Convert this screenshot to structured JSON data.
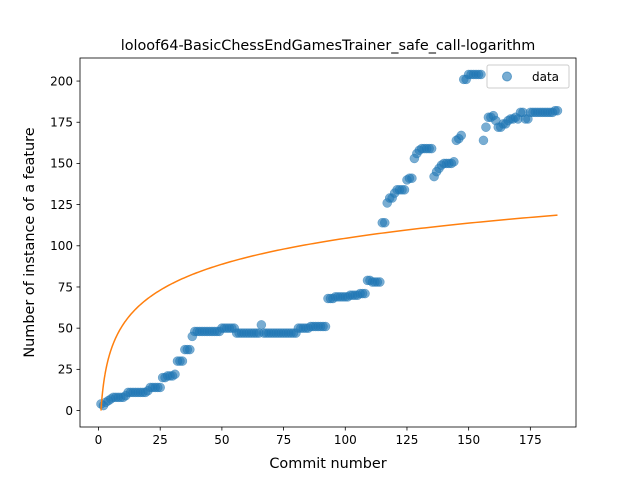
{
  "chart_data": {
    "type": "scatter",
    "title": "loloof64-BasicChessEndGamesTrainer_safe_call-logarithm",
    "xlabel": "Commit number",
    "ylabel": "Number of instance of a feature",
    "xlim": [
      -7.5,
      193.5
    ],
    "ylim": [
      -10,
      214
    ],
    "xticks": [
      0,
      25,
      50,
      75,
      100,
      125,
      150,
      175
    ],
    "yticks": [
      0,
      25,
      50,
      75,
      100,
      125,
      150,
      175,
      200
    ],
    "grid": false,
    "legend": {
      "placement": "top-right",
      "entries": [
        "data"
      ]
    },
    "colors": {
      "data": "#1f77b4",
      "fit": "#ff7f0e"
    },
    "series": [
      {
        "name": "data",
        "kind": "scatter",
        "x": [
          1,
          2,
          3,
          4,
          5,
          6,
          7,
          8,
          9,
          10,
          11,
          12,
          13,
          14,
          15,
          16,
          17,
          18,
          19,
          20,
          21,
          22,
          23,
          24,
          25,
          26,
          27,
          28,
          29,
          30,
          31,
          32,
          33,
          34,
          35,
          36,
          37,
          38,
          39,
          40,
          41,
          42,
          43,
          44,
          45,
          46,
          47,
          48,
          49,
          50,
          51,
          52,
          53,
          54,
          55,
          56,
          57,
          58,
          59,
          60,
          61,
          62,
          63,
          64,
          65,
          66,
          67,
          68,
          69,
          70,
          71,
          72,
          73,
          74,
          75,
          76,
          77,
          78,
          79,
          80,
          81,
          82,
          83,
          84,
          85,
          86,
          87,
          88,
          89,
          90,
          91,
          92,
          93,
          94,
          95,
          96,
          97,
          98,
          99,
          100,
          101,
          102,
          103,
          104,
          105,
          106,
          107,
          108,
          109,
          110,
          111,
          112,
          113,
          114,
          115,
          116,
          117,
          118,
          119,
          120,
          121,
          122,
          123,
          124,
          125,
          126,
          127,
          128,
          129,
          130,
          131,
          132,
          133,
          134,
          135,
          136,
          137,
          138,
          139,
          140,
          141,
          142,
          143,
          144,
          145,
          146,
          147,
          148,
          149,
          150,
          151,
          152,
          153,
          154,
          155,
          156,
          157,
          158,
          159,
          160,
          161,
          162,
          163,
          164,
          165,
          166,
          167,
          168,
          169,
          170,
          171,
          172,
          173,
          174,
          175,
          176,
          177,
          178,
          179,
          180,
          181,
          182,
          183,
          184,
          185,
          186
        ],
        "y": [
          4,
          3,
          5,
          6,
          7,
          8,
          8,
          8,
          8,
          8,
          9,
          11,
          11,
          11,
          11,
          11,
          11,
          11,
          11,
          12,
          14,
          14,
          14,
          14,
          14,
          20,
          20,
          21,
          21,
          21,
          22,
          30,
          30,
          30,
          37,
          37,
          37,
          45,
          48,
          48,
          48,
          48,
          48,
          48,
          48,
          48,
          48,
          48,
          48,
          50,
          50,
          50,
          50,
          50,
          50,
          47,
          47,
          47,
          47,
          47,
          47,
          47,
          47,
          47,
          47,
          52,
          47,
          47,
          47,
          47,
          47,
          47,
          47,
          47,
          47,
          47,
          47,
          47,
          47,
          47,
          50,
          50,
          50,
          50,
          50,
          51,
          51,
          51,
          51,
          51,
          51,
          51,
          68,
          68,
          68,
          69,
          69,
          69,
          69,
          69,
          69,
          70,
          70,
          70,
          70,
          71,
          71,
          71,
          79,
          79,
          78,
          78,
          78,
          78,
          114,
          114,
          126,
          129,
          129,
          132,
          134,
          134,
          134,
          134,
          140,
          141,
          141,
          153,
          156,
          158,
          159,
          159,
          159,
          159,
          159,
          142,
          145,
          147,
          149,
          150,
          150,
          150,
          150,
          151,
          164,
          165,
          167,
          201,
          201,
          204,
          204,
          204,
          204,
          204,
          204,
          164,
          172,
          178,
          178,
          179,
          176,
          172,
          172,
          174,
          174,
          176,
          177,
          177,
          178,
          177,
          181,
          181,
          177,
          177,
          181,
          181,
          181,
          181,
          181,
          181,
          181,
          181,
          181,
          181,
          182,
          182
        ]
      },
      {
        "name": "",
        "kind": "line",
        "x_range": [
          1,
          186
        ],
        "fit": {
          "a": 22.7,
          "b": 0
        }
      }
    ]
  }
}
